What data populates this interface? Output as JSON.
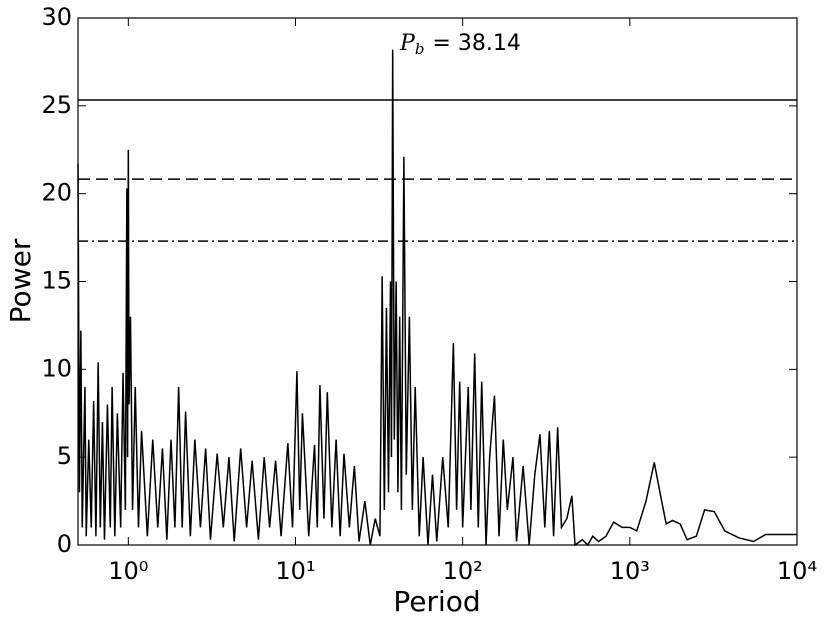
{
  "chart_data": {
    "type": "line",
    "xlabel": "Period",
    "ylabel": "Power",
    "xscale": "log",
    "color": "#000000",
    "annotation": {
      "symbol": "P",
      "subscript": "b",
      "text": "= 38.14"
    },
    "xlim": [
      0.5,
      10000
    ],
    "ylim": [
      0,
      30
    ],
    "xticks": [
      {
        "value": 1,
        "label": "10⁰"
      },
      {
        "value": 10,
        "label": "10¹"
      },
      {
        "value": 100,
        "label": "10²"
      },
      {
        "value": 1000,
        "label": "10³"
      },
      {
        "value": 10000,
        "label": "10⁴"
      }
    ],
    "yticks": [
      0,
      5,
      10,
      15,
      20,
      25,
      30
    ],
    "hlines": [
      {
        "value": 25.33,
        "style": "solid"
      },
      {
        "value": 20.83,
        "style": "dashed"
      },
      {
        "value": 17.3,
        "style": "dashdot"
      }
    ],
    "x": [
      0.5,
      0.51,
      0.52,
      0.53,
      0.55,
      0.56,
      0.58,
      0.6,
      0.62,
      0.64,
      0.66,
      0.68,
      0.7,
      0.72,
      0.75,
      0.78,
      0.8,
      0.83,
      0.86,
      0.9,
      0.93,
      0.96,
      0.98,
      0.99,
      1.0,
      1.01,
      1.03,
      1.06,
      1.1,
      1.15,
      1.2,
      1.3,
      1.4,
      1.5,
      1.6,
      1.7,
      1.8,
      1.9,
      2.0,
      2.1,
      2.2,
      2.35,
      2.5,
      2.7,
      2.9,
      3.1,
      3.4,
      3.7,
      4.0,
      4.3,
      4.7,
      5.1,
      5.5,
      6.0,
      6.5,
      7.0,
      7.6,
      8.2,
      9,
      9.6,
      10.2,
      10.6,
      11,
      12,
      13,
      13.5,
      14,
      14.8,
      15.5,
      16.5,
      17.5,
      18.5,
      19.5,
      21,
      22.5,
      24,
      26,
      28,
      30,
      32,
      33,
      34,
      35,
      36,
      37,
      37.5,
      38.14,
      39,
      40,
      41,
      42,
      43,
      44.5,
      46,
      48,
      50,
      52,
      55,
      58,
      62,
      66,
      70,
      76,
      82,
      88,
      92,
      96,
      100,
      108,
      112,
      118,
      124,
      130,
      138,
      145,
      155,
      165,
      175,
      185,
      200,
      210,
      230,
      250,
      270,
      290,
      310,
      330,
      350,
      370,
      390,
      420,
      450,
      470,
      520,
      560,
      600,
      650,
      720,
      800,
      900,
      1000,
      1100,
      1250,
      1400,
      1550,
      1650,
      1800,
      2000,
      2200,
      2500,
      2800,
      3200,
      3700,
      4500,
      5500,
      6500,
      8000,
      10000
    ],
    "values": [
      21.7,
      3,
      12.2,
      1,
      9,
      0.5,
      6,
      1,
      8.2,
      0.5,
      10.4,
      1,
      7,
      0.3,
      8,
      1,
      9,
      0.5,
      7.5,
      1,
      9.8,
      2,
      20.3,
      5,
      22.5,
      8,
      13,
      2,
      9,
      1,
      6.5,
      0.5,
      6,
      1,
      5.5,
      0.3,
      6,
      1,
      9,
      1,
      7.6,
      0.5,
      6,
      1,
      5.5,
      0.3,
      5.2,
      1,
      5,
      0.2,
      5.5,
      1,
      4.8,
      0.3,
      5,
      1,
      4.8,
      0.5,
      5.8,
      1,
      9.9,
      2,
      7.5,
      0.5,
      5.7,
      1,
      9.1,
      1.5,
      8.7,
      1,
      6,
      0.5,
      5.2,
      1,
      4.5,
      0.2,
      2.5,
      0,
      1.5,
      0.5,
      15.3,
      2,
      13.5,
      3,
      15,
      5,
      28.2,
      6,
      15,
      3,
      13,
      2,
      22.1,
      4,
      13,
      2,
      9,
      0.5,
      5,
      0,
      4,
      0.2,
      5,
      1,
      11.5,
      2,
      9.3,
      1,
      9,
      2,
      10.9,
      1,
      9.3,
      0,
      5,
      8.5,
      0.5,
      6,
      2,
      5,
      0.2,
      4.5,
      0,
      4,
      6.3,
      1,
      6.5,
      0.5,
      6.7,
      1,
      1.5,
      2.8,
      0,
      0.3,
      0,
      0.5,
      0.2,
      0.5,
      1.3,
      1,
      1,
      0.8,
      2.5,
      4.7,
      2.5,
      1.2,
      1.4,
      1.2,
      0.3,
      0.5,
      2,
      1.9,
      0.8,
      0.4,
      0.2,
      0.6,
      0.6,
      0.6
    ]
  }
}
